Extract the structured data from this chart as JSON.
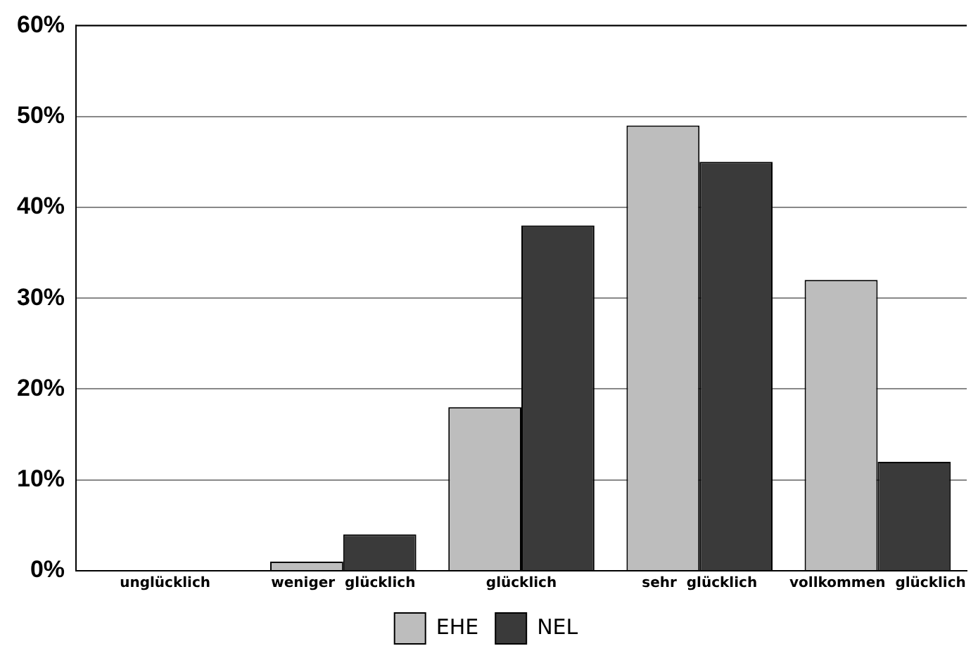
{
  "chart_data": {
    "type": "bar",
    "categories": [
      "unglücklich",
      "weniger  glücklich",
      "glücklich",
      "sehr  glücklich",
      "vollkommen  glücklich"
    ],
    "series": [
      {
        "name": "EHE",
        "color": "#bdbdbd",
        "values": [
          0,
          1,
          18,
          49,
          32
        ]
      },
      {
        "name": "NEL",
        "color": "#3a3a3a",
        "values": [
          0,
          4,
          38,
          45,
          12
        ]
      }
    ],
    "ylim": [
      0,
      60
    ],
    "yticks": [
      {
        "value": 0,
        "label": "0%"
      },
      {
        "value": 10,
        "label": "10%"
      },
      {
        "value": 20,
        "label": "20%"
      },
      {
        "value": 30,
        "label": "30%"
      },
      {
        "value": 40,
        "label": "40%"
      },
      {
        "value": 50,
        "label": "50%"
      },
      {
        "value": 60,
        "label": "60%"
      }
    ],
    "grid": "y",
    "legend": "bottom"
  }
}
